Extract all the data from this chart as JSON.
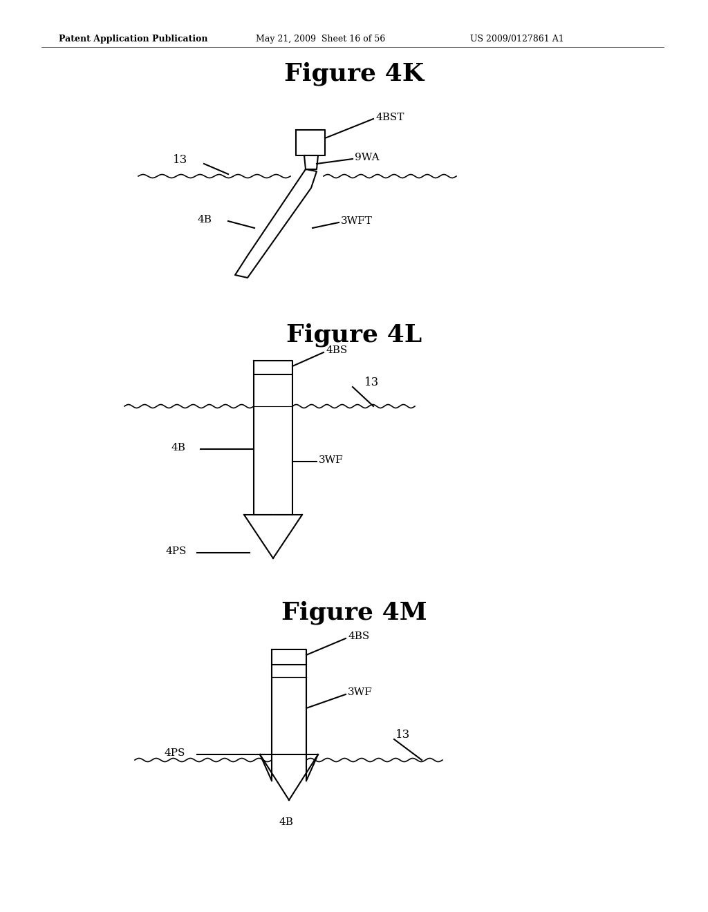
{
  "bg_color": "#ffffff",
  "header_left": "Patent Application Publication",
  "header_mid": "May 21, 2009  Sheet 16 of 56",
  "header_right": "US 2009/0127861 A1",
  "fig4k_title": "Figure 4K",
  "fig4l_title": "Figure 4L",
  "fig4m_title": "Figure 4M",
  "line_color": "#000000",
  "lw": 1.5
}
